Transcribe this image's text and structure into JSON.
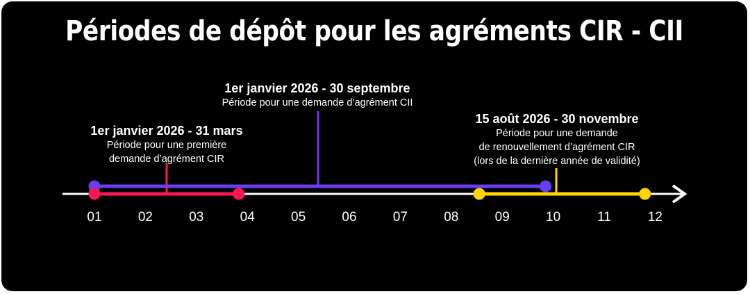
{
  "title": "Périodes de dépôt pour les agréments CIR - CII",
  "colors": {
    "background": "#000000",
    "axis": "#ffffff",
    "cir": "#ff1654",
    "cii": "#6a3df0",
    "renouvellement": "#ffd500"
  },
  "axis": {
    "months": [
      "01",
      "02",
      "03",
      "04",
      "05",
      "06",
      "07",
      "08",
      "09",
      "10",
      "11",
      "12"
    ]
  },
  "periods": [
    {
      "id": "cir",
      "head": "1er janvier 2026 - 31 mars",
      "lines": [
        "Période pour une première",
        "demande d’agrément CIR"
      ],
      "start_month": 1.0,
      "end_month": 3.83
    },
    {
      "id": "cii",
      "head": "1er janvier 2026 - 30 septembre",
      "lines": [
        "Période pour une demande d’agrément CII"
      ],
      "start_month": 1.0,
      "end_month": 9.85
    },
    {
      "id": "renouvellement",
      "head": "15 août 2026 - 30 novembre",
      "lines": [
        "Période pour une demande",
        "de renouvellement d’agrément CIR",
        "(lors de la dernière année de validité)"
      ],
      "start_month": 8.55,
      "end_month": 11.8
    }
  ]
}
